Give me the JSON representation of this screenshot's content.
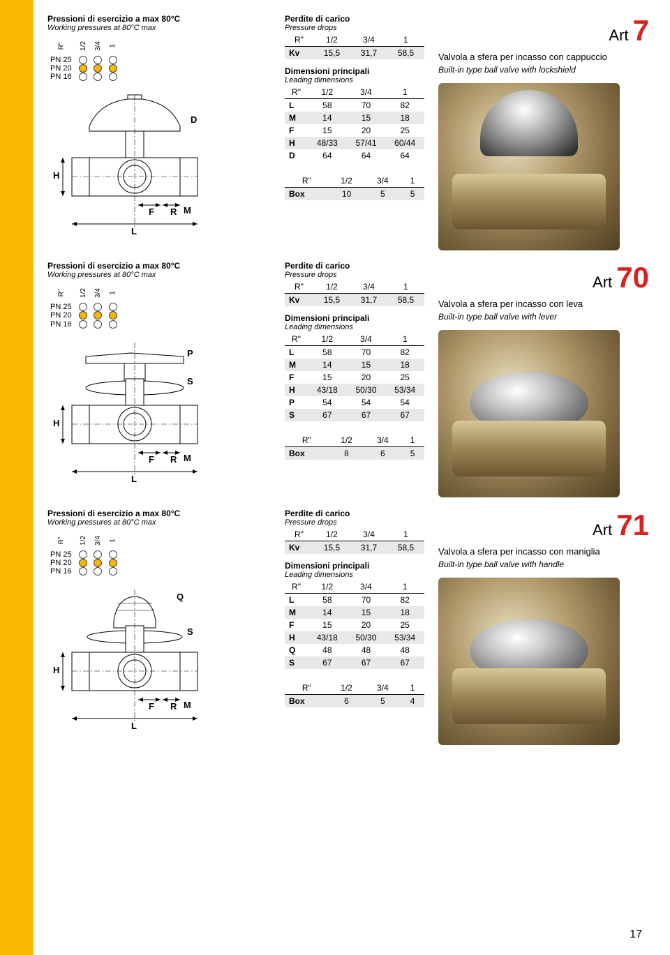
{
  "page_number": "17",
  "pressure_header": {
    "title_it": "Pressioni di esercizio a max 80°C",
    "title_en": "Working pressures at 80°C max",
    "col_headers": [
      "R\"",
      "1/2",
      "3/4",
      "1"
    ],
    "rows": [
      {
        "label": "PN 25",
        "cells": [
          "off",
          "off",
          "off"
        ]
      },
      {
        "label": "PN 20",
        "cells": [
          "on",
          "on",
          "on"
        ]
      },
      {
        "label": "PN 16",
        "cells": [
          "off",
          "off",
          "off"
        ]
      }
    ]
  },
  "pressure_drops": {
    "title_it": "Perdite di carico",
    "title_en": "Pressure drops",
    "header": [
      "R\"",
      "1/2",
      "3/4",
      "1"
    ],
    "row": {
      "label": "Kv",
      "vals": [
        "15,5",
        "31,7",
        "58,5"
      ]
    }
  },
  "leading_dims": {
    "title_it": "Dimensioni principali",
    "title_en": "Leading dimensions",
    "header": [
      "R\"",
      "1/2",
      "3/4",
      "1"
    ]
  },
  "products": [
    {
      "art_label": "Art",
      "art_num": "7",
      "desc_it": "Valvola a sfera per incasso con cappuccio",
      "desc_en": "Built-in type ball valve with lockshield",
      "photo_class": "chrome",
      "dims_rows": [
        {
          "label": "L",
          "vals": [
            "58",
            "70",
            "82"
          ],
          "grey": false
        },
        {
          "label": "M",
          "vals": [
            "14",
            "15",
            "18"
          ],
          "grey": true
        },
        {
          "label": "F",
          "vals": [
            "15",
            "20",
            "25"
          ],
          "grey": false
        },
        {
          "label": "H",
          "vals": [
            "48/33",
            "57/41",
            "60/44"
          ],
          "grey": true
        },
        {
          "label": "D",
          "vals": [
            "64",
            "64",
            "64"
          ],
          "grey": false
        }
      ],
      "rsize_header": [
        "R\"",
        "1/2",
        "3/4",
        "1"
      ],
      "box_row": {
        "label": "Box",
        "vals": [
          "10",
          "5",
          "5"
        ],
        "grey": true
      },
      "diagram_labels": [
        "D",
        "H",
        "F",
        "R",
        "M",
        "L"
      ]
    },
    {
      "art_label": "Art",
      "art_num": "70",
      "desc_it": "Valvola a sfera per incasso con leva",
      "desc_en": "Built-in type ball valve with lever",
      "photo_class": "chrome-disc",
      "dims_rows": [
        {
          "label": "L",
          "vals": [
            "58",
            "70",
            "82"
          ],
          "grey": false
        },
        {
          "label": "M",
          "vals": [
            "14",
            "15",
            "18"
          ],
          "grey": true
        },
        {
          "label": "F",
          "vals": [
            "15",
            "20",
            "25"
          ],
          "grey": false
        },
        {
          "label": "H",
          "vals": [
            "43/18",
            "50/30",
            "53/34"
          ],
          "grey": true
        },
        {
          "label": "P",
          "vals": [
            "54",
            "54",
            "54"
          ],
          "grey": false
        },
        {
          "label": "S",
          "vals": [
            "67",
            "67",
            "67"
          ],
          "grey": true
        }
      ],
      "rsize_header": [
        "R\"",
        "1/2",
        "3/4",
        "1"
      ],
      "box_row": {
        "label": "Box",
        "vals": [
          "8",
          "6",
          "5"
        ],
        "grey": true
      },
      "diagram_labels": [
        "P",
        "S",
        "H",
        "F",
        "R",
        "M",
        "L"
      ]
    },
    {
      "art_label": "Art",
      "art_num": "71",
      "desc_it": "Valvola a sfera per incasso con maniglia",
      "desc_en": "Built-in type ball valve with handle",
      "photo_class": "chrome-disc",
      "dims_rows": [
        {
          "label": "L",
          "vals": [
            "58",
            "70",
            "82"
          ],
          "grey": false
        },
        {
          "label": "M",
          "vals": [
            "14",
            "15",
            "18"
          ],
          "grey": true
        },
        {
          "label": "F",
          "vals": [
            "15",
            "20",
            "25"
          ],
          "grey": false
        },
        {
          "label": "H",
          "vals": [
            "43/18",
            "50/30",
            "53/34"
          ],
          "grey": true
        },
        {
          "label": "Q",
          "vals": [
            "48",
            "48",
            "48"
          ],
          "grey": false
        },
        {
          "label": "S",
          "vals": [
            "67",
            "67",
            "67"
          ],
          "grey": true
        }
      ],
      "rsize_header": [
        "R\"",
        "1/2",
        "3/4",
        "1"
      ],
      "box_row": {
        "label": "Box",
        "vals": [
          "6",
          "5",
          "4"
        ],
        "grey": true
      },
      "diagram_labels": [
        "Q",
        "S",
        "H",
        "F",
        "R",
        "M",
        "L"
      ]
    }
  ]
}
